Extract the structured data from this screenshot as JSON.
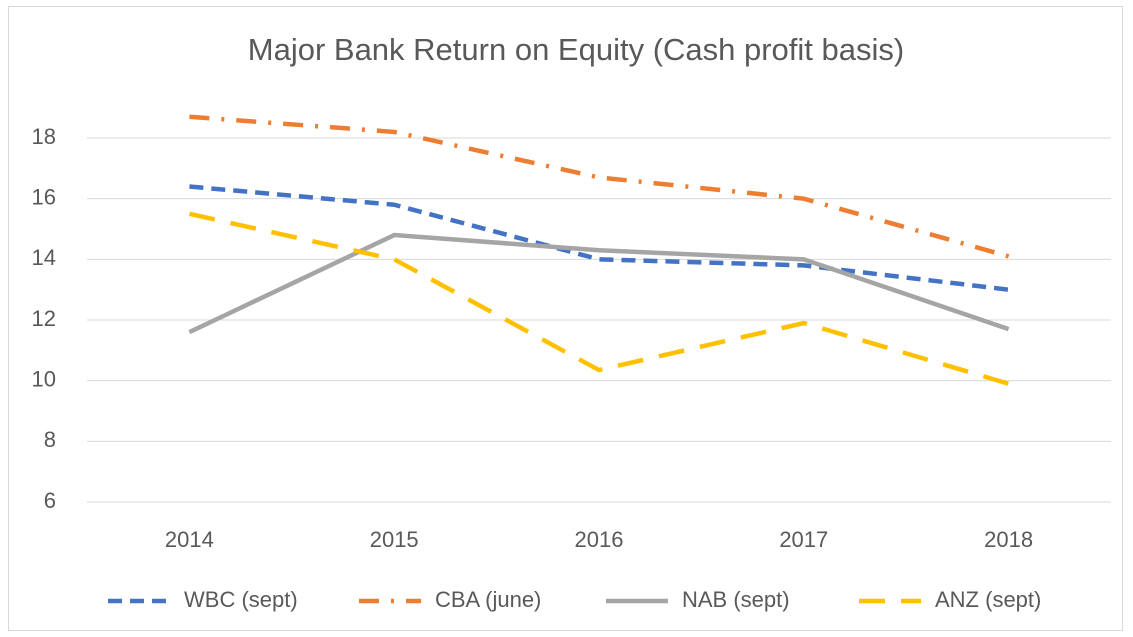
{
  "chart_data": {
    "type": "line",
    "title": "Major Bank Return on Equity (Cash profit basis)",
    "categories": [
      "2014",
      "2015",
      "2016",
      "2017",
      "2018"
    ],
    "series": [
      {
        "name": "WBC (sept)",
        "color": "#4472c4",
        "dash": "dash",
        "values": [
          16.4,
          15.8,
          14.0,
          13.8,
          13.0
        ]
      },
      {
        "name": "CBA (june)",
        "color": "#ed7d31",
        "dash": "dashdot",
        "values": [
          18.7,
          18.2,
          16.7,
          16.0,
          14.1
        ]
      },
      {
        "name": "NAB (sept)",
        "color": "#a5a5a5",
        "dash": "solid",
        "values": [
          11.6,
          14.8,
          14.3,
          14.0,
          11.7
        ]
      },
      {
        "name": "ANZ (sept)",
        "color": "#ffc000",
        "dash": "longdash",
        "values": [
          15.5,
          14.0,
          10.35,
          11.9,
          9.9
        ]
      }
    ],
    "ylim": [
      6,
      18
    ],
    "yticks": [
      6,
      8,
      10,
      12,
      14,
      16,
      18
    ],
    "grid": true,
    "legend": "bottom"
  }
}
